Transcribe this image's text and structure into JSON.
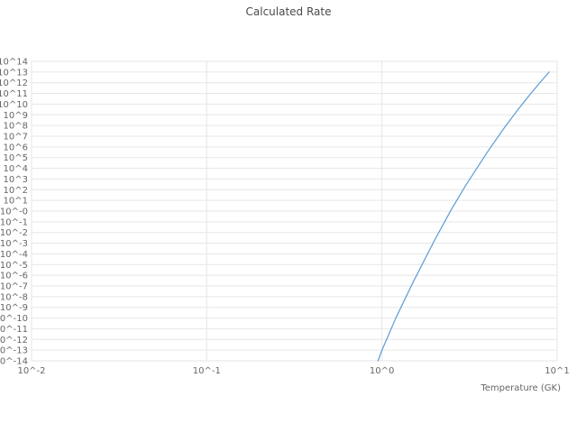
{
  "chart": {
    "title": "Calculated Rate",
    "xlabel": "Temperature (GK)"
  },
  "chart_data": {
    "type": "line",
    "title": "Calculated Rate",
    "xlabel": "Temperature (GK)",
    "ylabel": "",
    "x_scale": "log",
    "y_scale": "log",
    "xlim": [
      0.01,
      10
    ],
    "ylim": [
      1e-14,
      100000000000000.0
    ],
    "grid": true,
    "legend_position": "none",
    "line_color": "#5b9bd5",
    "grid_color": "#e6e6e6",
    "tick_color": "#666666",
    "x_ticks": [
      {
        "value": 0.01,
        "label": "10^-2"
      },
      {
        "value": 0.1,
        "label": "10^-1"
      },
      {
        "value": 1,
        "label": "10^0"
      },
      {
        "value": 10,
        "label": "10^1"
      }
    ],
    "y_ticks": [
      {
        "value": 100000000000000.0,
        "label": "10^14"
      },
      {
        "value": 10000000000000.0,
        "label": "10^13"
      },
      {
        "value": 1000000000000.0,
        "label": "10^12"
      },
      {
        "value": 100000000000.0,
        "label": "10^11"
      },
      {
        "value": 10000000000.0,
        "label": "10^10"
      },
      {
        "value": 1000000000.0,
        "label": "10^9"
      },
      {
        "value": 100000000.0,
        "label": "10^8"
      },
      {
        "value": 10000000.0,
        "label": "10^7"
      },
      {
        "value": 1000000.0,
        "label": "10^6"
      },
      {
        "value": 100000.0,
        "label": "10^5"
      },
      {
        "value": 10000.0,
        "label": "10^4"
      },
      {
        "value": 1000.0,
        "label": "10^3"
      },
      {
        "value": 100.0,
        "label": "10^2"
      },
      {
        "value": 10.0,
        "label": "10^1"
      },
      {
        "value": 1,
        "label": "10^-0"
      },
      {
        "value": 0.1,
        "label": "10^-1"
      },
      {
        "value": 0.01,
        "label": "10^-2"
      },
      {
        "value": 0.001,
        "label": "10^-3"
      },
      {
        "value": 0.0001,
        "label": "10^-4"
      },
      {
        "value": 1e-05,
        "label": "10^-5"
      },
      {
        "value": 1e-06,
        "label": "10^-6"
      },
      {
        "value": 1e-07,
        "label": "10^-7"
      },
      {
        "value": 1e-08,
        "label": "10^-8"
      },
      {
        "value": 1e-09,
        "label": "10^-9"
      },
      {
        "value": 1e-10,
        "label": "10^-10"
      },
      {
        "value": 1e-11,
        "label": "10^-11"
      },
      {
        "value": 1e-12,
        "label": "10^-12"
      },
      {
        "value": 1e-13,
        "label": "10^-13"
      },
      {
        "value": 1e-14,
        "label": "10^-14"
      }
    ],
    "series": [
      {
        "name": "Calculated Rate",
        "x": [
          0.95,
          1.0,
          1.2,
          1.5,
          2.0,
          2.5,
          3.0,
          4.0,
          5.0,
          6.0,
          7.0,
          8.0,
          9.0
        ],
        "y": [
          1e-14,
          1e-13,
          1e-10,
          2e-07,
          0.002,
          1.6,
          240,
          340000.0,
          63000000.0,
          3400000000.0,
          80000000000.0,
          1100000000000.0,
          10000000000000.0
        ]
      }
    ]
  }
}
